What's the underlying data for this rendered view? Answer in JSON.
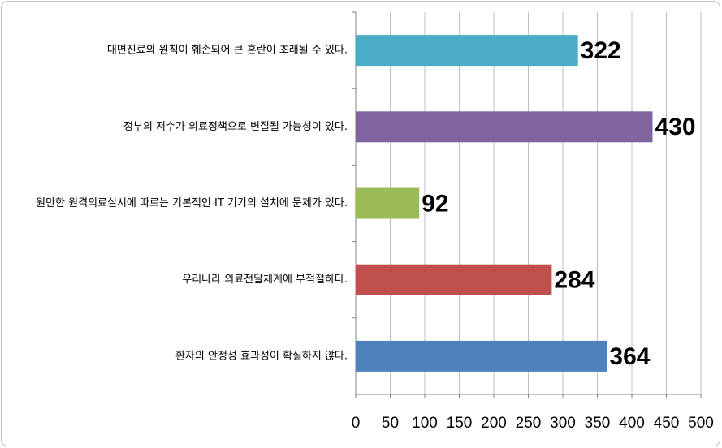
{
  "chart_data": {
    "type": "bar",
    "orientation": "horizontal",
    "categories": [
      "대면진료의 원칙이 훼손되어 큰 혼란이 초래될 수 있다.",
      "정부의 저수가 의료정책으로 변질될 가능성이 있다.",
      "원만한 원격의료실시에 따르는 기본적인 IT 기기의 설치에 문제가 있다.",
      "우리나라 의료전달체계에 부적절하다.",
      "환자의 안정성 효과성이 확실하지 않다."
    ],
    "values": [
      322,
      430,
      92,
      284,
      364
    ],
    "colors": [
      "#4bacc6",
      "#8064a2",
      "#9bbb59",
      "#c0504d",
      "#4f81bd"
    ],
    "xlim": [
      0,
      500
    ],
    "xticks": [
      0,
      50,
      100,
      150,
      200,
      250,
      300,
      350,
      400,
      450,
      500
    ],
    "grid": true
  }
}
